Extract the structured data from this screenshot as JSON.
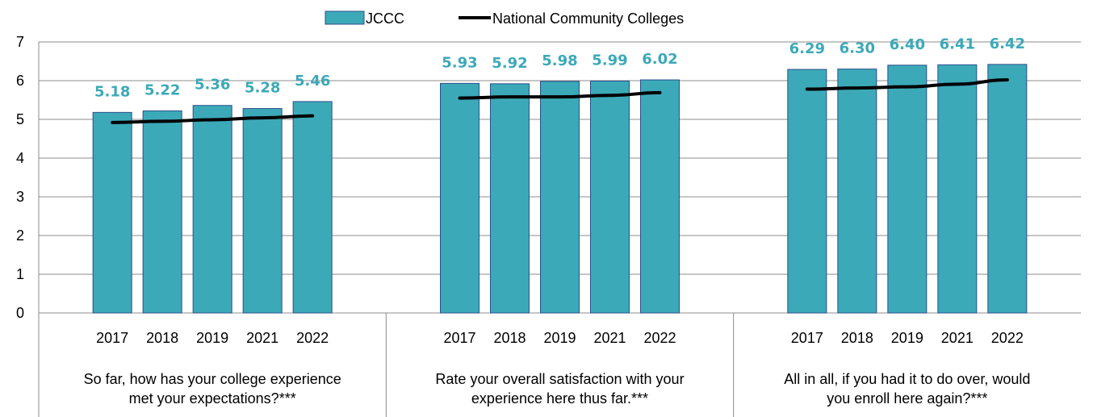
{
  "chart_data": {
    "type": "bar",
    "groups": [
      {
        "label_lines": [
          "So far, how has your college experience",
          "met your expectations?***"
        ],
        "years": [
          "2017",
          "2018",
          "2019",
          "2021",
          "2022"
        ],
        "jccc": [
          5.18,
          5.22,
          5.36,
          5.28,
          5.46
        ],
        "jccc_labels": [
          "5.18",
          "5.22",
          "5.36",
          "5.28",
          "5.46"
        ],
        "national": [
          4.92,
          4.95,
          4.99,
          5.04,
          5.09
        ]
      },
      {
        "label_lines": [
          "Rate your overall satisfaction with your",
          "experience here thus far.***"
        ],
        "years": [
          "2017",
          "2018",
          "2019",
          "2021",
          "2022"
        ],
        "jccc": [
          5.93,
          5.92,
          5.98,
          5.99,
          6.02
        ],
        "jccc_labels": [
          "5.93",
          "5.92",
          "5.98",
          "5.99",
          "6.02"
        ],
        "national": [
          5.55,
          5.58,
          5.58,
          5.62,
          5.69
        ]
      },
      {
        "label_lines": [
          "All in all, if you had it to do over, would",
          "you enroll here again?***"
        ],
        "years": [
          "2017",
          "2018",
          "2019",
          "2021",
          "2022"
        ],
        "jccc": [
          6.29,
          6.3,
          6.4,
          6.41,
          6.42
        ],
        "jccc_labels": [
          "6.29",
          "6.30",
          "6.40",
          "6.41",
          "6.42"
        ],
        "national": [
          5.78,
          5.81,
          5.84,
          5.91,
          6.02
        ]
      }
    ],
    "series": [
      {
        "name": "JCCC",
        "kind": "bar",
        "color": "#3ca9b8",
        "border": "#2b4f8c"
      },
      {
        "name": "National Community Colleges",
        "kind": "line",
        "color": "#000000"
      }
    ],
    "ylim": [
      0,
      7
    ],
    "yticks": [
      "0",
      "1",
      "2",
      "3",
      "4",
      "5",
      "6",
      "7"
    ],
    "grid": true,
    "legend": "top-center",
    "label_color": "#3ca9b8"
  }
}
